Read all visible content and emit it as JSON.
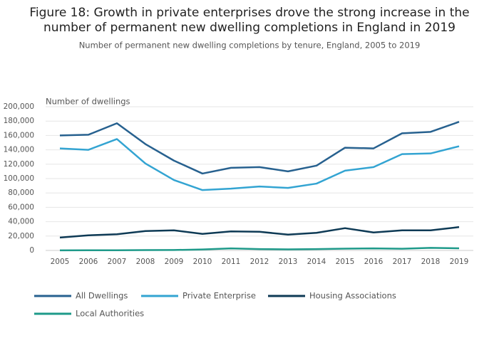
{
  "chart_data": {
    "type": "line",
    "title": "Figure 18: Growth in private enterprises drove the strong increase in the number of permanent new dwelling completions in England in 2019",
    "subtitle": "Number of permanent new dwelling completions by tenure, England, 2005 to 2019",
    "y_label": "Number of dwellings",
    "categories": [
      "2005",
      "2006",
      "2007",
      "2008",
      "2009",
      "2010",
      "2011",
      "2012",
      "2013",
      "2014",
      "2015",
      "2016",
      "2017",
      "2018",
      "2019"
    ],
    "series": [
      {
        "name": "All Dwellings",
        "color": "#27618f",
        "values": [
          160000,
          161000,
          177000,
          148000,
          125000,
          107000,
          115000,
          116000,
          110000,
          118000,
          143000,
          142000,
          163000,
          165000,
          179000
        ]
      },
      {
        "name": "Private Enterprise",
        "color": "#33a4d2",
        "values": [
          142000,
          140000,
          155000,
          121000,
          98000,
          84000,
          86000,
          89000,
          87000,
          93000,
          111000,
          116000,
          134000,
          135000,
          145000
        ]
      },
      {
        "name": "Housing Associations",
        "color": "#0e3a55",
        "values": [
          18000,
          21000,
          22500,
          27000,
          28000,
          23000,
          26500,
          26000,
          22000,
          24500,
          31000,
          25000,
          28000,
          28000,
          32500
        ]
      },
      {
        "name": "Local Authorities",
        "color": "#1e9a8a",
        "values": [
          100,
          300,
          300,
          500,
          600,
          1400,
          2900,
          1900,
          1500,
          1800,
          2500,
          2900,
          2300,
          3600,
          3000
        ]
      }
    ],
    "ylim": [
      0,
      200000
    ],
    "yticks": [
      0,
      {
        "value": 20000,
        "label": "20,000"
      },
      {
        "value": 40000,
        "label": "40,000"
      },
      {
        "value": 60000,
        "label": "60,000"
      },
      {
        "value": 80000,
        "label": "80,000"
      },
      {
        "value": 100000,
        "label": "100,000"
      },
      {
        "value": 120000,
        "label": "120,000"
      },
      {
        "value": 140000,
        "label": "140,000"
      },
      {
        "value": 160000,
        "label": "160,000"
      },
      {
        "value": 180000,
        "label": "180,000"
      },
      {
        "value": 200000,
        "label": "200,000"
      }
    ],
    "grid": true
  }
}
